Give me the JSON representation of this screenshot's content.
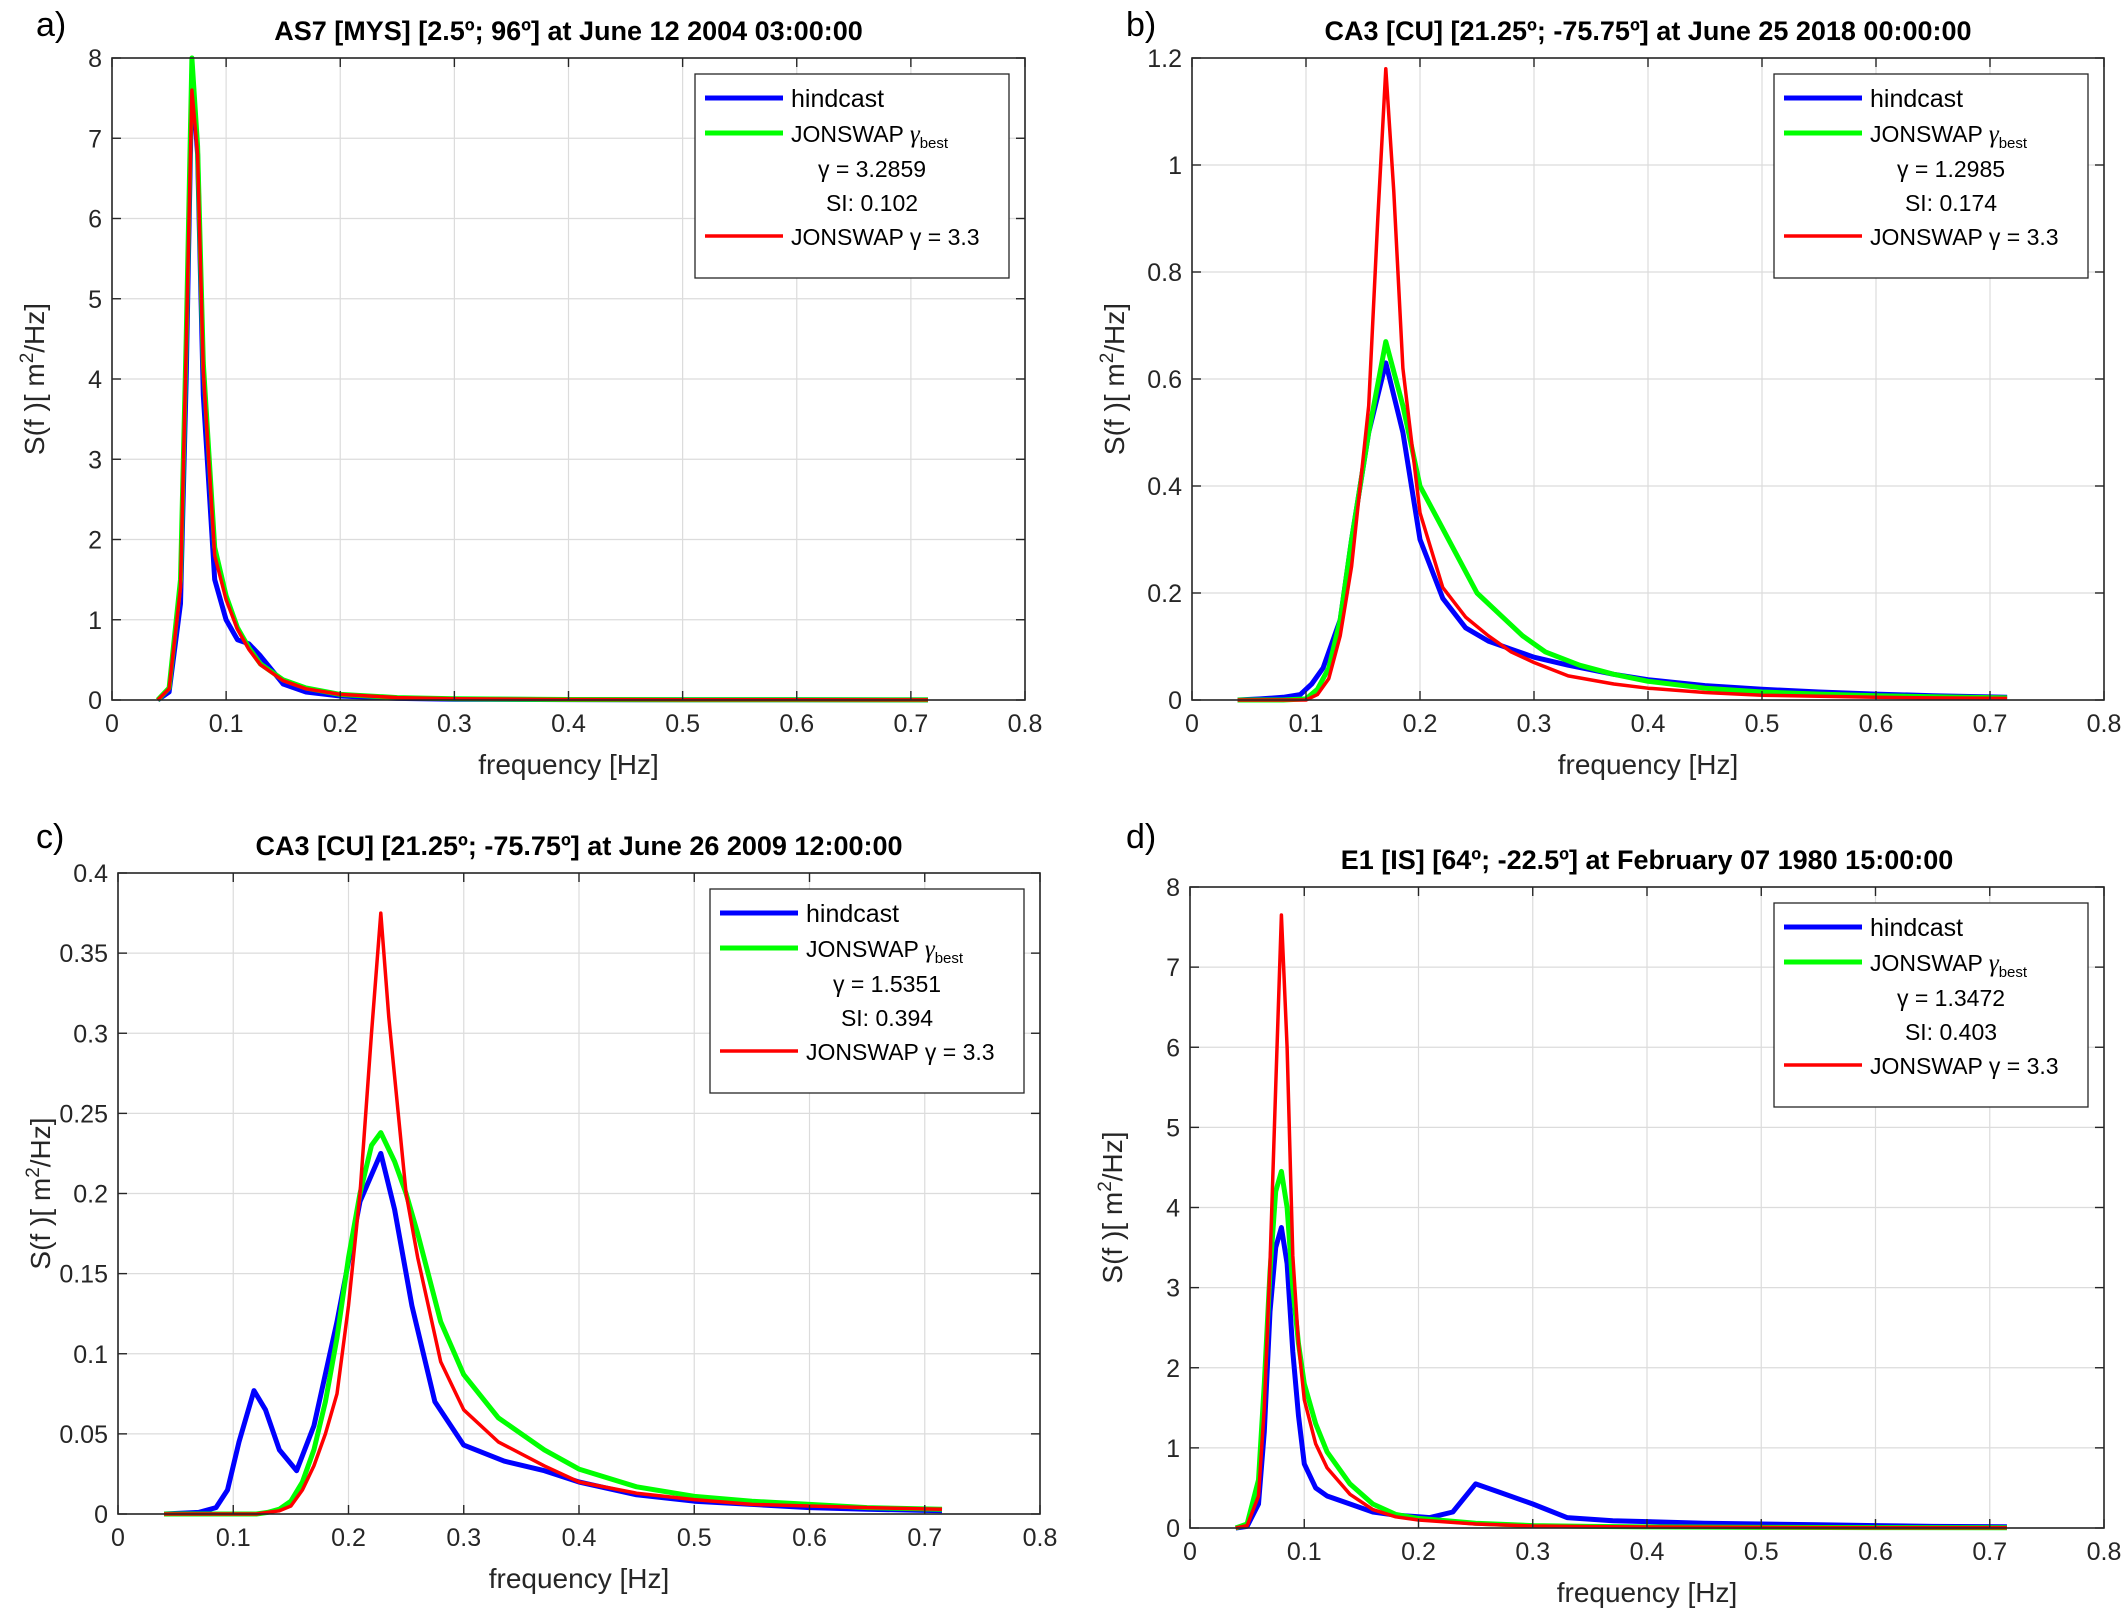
{
  "colors": {
    "hindcast": "#0000ff",
    "jonswap_best": "#00ff00",
    "jonswap_33": "#ff0000",
    "grid": "#dcdcdc",
    "axis": "#262626"
  },
  "chart_data": [
    {
      "panel": "a)",
      "type": "line",
      "title": "AS7 [MYS] [2.5º; 96º] at June 12 2004 03:00:00",
      "xlabel": "frequency [Hz]",
      "ylabel_pre": "S(f )[ m",
      "ylabel_sup": "2",
      "ylabel_post": "/Hz]",
      "xlim": [
        0,
        0.8
      ],
      "ylim": [
        0,
        8
      ],
      "xticks": [
        "0",
        "0.1",
        "0.2",
        "0.3",
        "0.4",
        "0.5",
        "0.6",
        "0.7",
        "0.8"
      ],
      "ytick_values": [
        0,
        1,
        2,
        3,
        4,
        5,
        6,
        7,
        8
      ],
      "yticks": [
        "0",
        "1",
        "2",
        "3",
        "4",
        "5",
        "6",
        "7",
        "8"
      ],
      "grid": true,
      "legend": {
        "position": "top-right",
        "gamma_label": "γ = 3.2859",
        "si_label": "SI: 0.102"
      },
      "series": [
        {
          "name": "hindcast",
          "x": [
            0.04,
            0.05,
            0.06,
            0.065,
            0.07,
            0.075,
            0.08,
            0.09,
            0.1,
            0.11,
            0.12,
            0.13,
            0.15,
            0.17,
            0.2,
            0.25,
            0.3,
            0.4,
            0.5,
            0.6,
            0.715
          ],
          "y": [
            0,
            0.1,
            1.2,
            4.0,
            7.8,
            6.8,
            3.8,
            1.5,
            1.0,
            0.75,
            0.7,
            0.55,
            0.2,
            0.1,
            0.05,
            0.02,
            0.01,
            0.005,
            0.003,
            0.002,
            0.001
          ]
        },
        {
          "name": "JONSWAP γ_best",
          "x": [
            0.04,
            0.05,
            0.06,
            0.065,
            0.07,
            0.075,
            0.08,
            0.09,
            0.1,
            0.11,
            0.12,
            0.13,
            0.15,
            0.17,
            0.2,
            0.25,
            0.3,
            0.4,
            0.5,
            0.6,
            0.715
          ],
          "y": [
            0,
            0.15,
            1.5,
            4.5,
            8.0,
            6.9,
            4.2,
            1.9,
            1.3,
            0.9,
            0.65,
            0.45,
            0.25,
            0.15,
            0.07,
            0.03,
            0.015,
            0.006,
            0.003,
            0.002,
            0.001
          ]
        },
        {
          "name": "JONSWAP γ = 3.3",
          "x": [
            0.04,
            0.05,
            0.06,
            0.065,
            0.07,
            0.075,
            0.08,
            0.09,
            0.1,
            0.11,
            0.12,
            0.13,
            0.15,
            0.17,
            0.2,
            0.25,
            0.3,
            0.4,
            0.5,
            0.6,
            0.715
          ],
          "y": [
            0,
            0.14,
            1.4,
            4.4,
            7.6,
            6.8,
            4.1,
            1.8,
            1.25,
            0.88,
            0.63,
            0.44,
            0.24,
            0.14,
            0.07,
            0.03,
            0.015,
            0.006,
            0.003,
            0.002,
            0.001
          ]
        }
      ]
    },
    {
      "panel": "b)",
      "type": "line",
      "title": "CA3 [CU] [21.25º; -75.75º] at June 25 2018 00:00:00",
      "xlabel": "frequency [Hz]",
      "ylabel_pre": "S(f )[ m",
      "ylabel_sup": "2",
      "ylabel_post": "/Hz]",
      "xlim": [
        0,
        0.8
      ],
      "ylim": [
        0,
        1.2
      ],
      "xticks": [
        "0",
        "0.1",
        "0.2",
        "0.3",
        "0.4",
        "0.5",
        "0.6",
        "0.7",
        "0.8"
      ],
      "ytick_values": [
        0,
        0.2,
        0.4,
        0.6,
        0.8,
        1,
        1.2
      ],
      "yticks": [
        "0",
        "0.2",
        "0.4",
        "0.6",
        "0.8",
        "1",
        "1.2"
      ],
      "grid": true,
      "legend": {
        "position": "top-right",
        "gamma_label": "γ = 1.2985",
        "si_label": "SI: 0.174"
      },
      "series": [
        {
          "name": "hindcast",
          "x": [
            0.04,
            0.06,
            0.08,
            0.095,
            0.105,
            0.115,
            0.13,
            0.14,
            0.155,
            0.17,
            0.185,
            0.2,
            0.22,
            0.24,
            0.26,
            0.28,
            0.3,
            0.33,
            0.37,
            0.4,
            0.45,
            0.5,
            0.55,
            0.6,
            0.65,
            0.715
          ],
          "y": [
            0,
            0.002,
            0.005,
            0.01,
            0.03,
            0.06,
            0.15,
            0.3,
            0.5,
            0.63,
            0.5,
            0.3,
            0.19,
            0.135,
            0.11,
            0.095,
            0.08,
            0.065,
            0.048,
            0.038,
            0.027,
            0.02,
            0.015,
            0.011,
            0.008,
            0.005
          ]
        },
        {
          "name": "JONSWAP γ_best",
          "x": [
            0.04,
            0.08,
            0.1,
            0.11,
            0.12,
            0.13,
            0.14,
            0.155,
            0.17,
            0.185,
            0.2,
            0.215,
            0.23,
            0.25,
            0.27,
            0.29,
            0.31,
            0.34,
            0.37,
            0.4,
            0.45,
            0.5,
            0.55,
            0.6,
            0.65,
            0.715
          ],
          "y": [
            0,
            0,
            0.002,
            0.02,
            0.06,
            0.15,
            0.3,
            0.5,
            0.67,
            0.55,
            0.4,
            0.34,
            0.28,
            0.2,
            0.16,
            0.12,
            0.09,
            0.065,
            0.048,
            0.035,
            0.022,
            0.015,
            0.011,
            0.008,
            0.006,
            0.004
          ]
        },
        {
          "name": "JONSWAP γ = 3.3",
          "x": [
            0.04,
            0.1,
            0.11,
            0.12,
            0.13,
            0.14,
            0.155,
            0.163,
            0.17,
            0.177,
            0.185,
            0.2,
            0.22,
            0.24,
            0.26,
            0.28,
            0.3,
            0.33,
            0.37,
            0.4,
            0.45,
            0.5,
            0.55,
            0.6,
            0.65,
            0.715
          ],
          "y": [
            0,
            0,
            0.01,
            0.04,
            0.12,
            0.25,
            0.55,
            0.9,
            1.18,
            0.95,
            0.62,
            0.35,
            0.21,
            0.155,
            0.12,
            0.09,
            0.07,
            0.045,
            0.03,
            0.022,
            0.014,
            0.009,
            0.007,
            0.005,
            0.004,
            0.003
          ]
        }
      ]
    },
    {
      "panel": "c)",
      "type": "line",
      "title": "CA3 [CU] [21.25º; -75.75º] at June 26 2009 12:00:00",
      "xlabel": "frequency [Hz]",
      "ylabel_pre": "S(f )[ m",
      "ylabel_sup": "2",
      "ylabel_post": "/Hz]",
      "xlim": [
        0,
        0.8
      ],
      "ylim": [
        0,
        0.4
      ],
      "xticks": [
        "0",
        "0.1",
        "0.2",
        "0.3",
        "0.4",
        "0.5",
        "0.6",
        "0.7",
        "0.8"
      ],
      "ytick_values": [
        0,
        0.05,
        0.1,
        0.15,
        0.2,
        0.25,
        0.3,
        0.35,
        0.4
      ],
      "yticks": [
        "0",
        "0.05",
        "0.1",
        "0.15",
        "0.2",
        "0.25",
        "0.3",
        "0.35",
        "0.4"
      ],
      "grid": true,
      "legend": {
        "position": "top-right",
        "gamma_label": "γ = 1.5351",
        "si_label": "SI: 0.394"
      },
      "series": [
        {
          "name": "hindcast",
          "x": [
            0.04,
            0.07,
            0.085,
            0.095,
            0.105,
            0.118,
            0.128,
            0.14,
            0.155,
            0.17,
            0.19,
            0.21,
            0.228,
            0.24,
            0.255,
            0.275,
            0.3,
            0.335,
            0.37,
            0.4,
            0.45,
            0.5,
            0.55,
            0.6,
            0.65,
            0.715
          ],
          "y": [
            0,
            0.001,
            0.004,
            0.015,
            0.045,
            0.077,
            0.065,
            0.04,
            0.027,
            0.055,
            0.12,
            0.195,
            0.225,
            0.19,
            0.13,
            0.07,
            0.043,
            0.033,
            0.027,
            0.02,
            0.012,
            0.008,
            0.006,
            0.004,
            0.003,
            0.002
          ]
        },
        {
          "name": "JONSWAP γ_best",
          "x": [
            0.04,
            0.12,
            0.13,
            0.14,
            0.15,
            0.16,
            0.17,
            0.18,
            0.19,
            0.2,
            0.21,
            0.22,
            0.228,
            0.24,
            0.25,
            0.26,
            0.28,
            0.3,
            0.33,
            0.37,
            0.4,
            0.45,
            0.5,
            0.55,
            0.6,
            0.65,
            0.715
          ],
          "y": [
            0,
            0,
            0.001,
            0.003,
            0.008,
            0.02,
            0.04,
            0.07,
            0.11,
            0.16,
            0.2,
            0.23,
            0.238,
            0.22,
            0.2,
            0.175,
            0.12,
            0.087,
            0.06,
            0.04,
            0.028,
            0.017,
            0.011,
            0.008,
            0.006,
            0.004,
            0.003
          ]
        },
        {
          "name": "JONSWAP γ = 3.3",
          "x": [
            0.04,
            0.12,
            0.13,
            0.14,
            0.15,
            0.16,
            0.17,
            0.18,
            0.19,
            0.2,
            0.21,
            0.22,
            0.228,
            0.235,
            0.25,
            0.26,
            0.28,
            0.3,
            0.33,
            0.37,
            0.4,
            0.45,
            0.5,
            0.55,
            0.6,
            0.65,
            0.715
          ],
          "y": [
            0,
            0,
            0.001,
            0.002,
            0.005,
            0.015,
            0.03,
            0.05,
            0.075,
            0.13,
            0.2,
            0.3,
            0.375,
            0.31,
            0.2,
            0.16,
            0.095,
            0.065,
            0.045,
            0.03,
            0.02,
            0.013,
            0.009,
            0.006,
            0.005,
            0.004,
            0.003
          ]
        }
      ]
    },
    {
      "panel": "d)",
      "type": "line",
      "title": "E1 [IS] [64º; -22.5º] at February 07 1980 15:00:00",
      "xlabel": "frequency [Hz]",
      "ylabel_pre": "S(f )[ m",
      "ylabel_sup": "2",
      "ylabel_post": "/Hz]",
      "xlim": [
        0,
        0.8
      ],
      "ylim": [
        0,
        8
      ],
      "xticks": [
        "0",
        "0.1",
        "0.2",
        "0.3",
        "0.4",
        "0.5",
        "0.6",
        "0.7",
        "0.8"
      ],
      "ytick_values": [
        0,
        1,
        2,
        3,
        4,
        5,
        6,
        7,
        8
      ],
      "yticks": [
        "0",
        "1",
        "2",
        "3",
        "4",
        "5",
        "6",
        "7",
        "8"
      ],
      "grid": true,
      "legend": {
        "position": "top-right",
        "gamma_label": "γ = 1.3472",
        "si_label": "SI: 0.403"
      },
      "series": [
        {
          "name": "hindcast",
          "x": [
            0.04,
            0.05,
            0.06,
            0.065,
            0.07,
            0.075,
            0.08,
            0.085,
            0.09,
            0.095,
            0.1,
            0.11,
            0.12,
            0.14,
            0.16,
            0.18,
            0.2,
            0.21,
            0.23,
            0.25,
            0.27,
            0.3,
            0.33,
            0.37,
            0.4,
            0.45,
            0.5,
            0.55,
            0.6,
            0.65,
            0.715
          ],
          "y": [
            0,
            0.02,
            0.3,
            1.2,
            2.7,
            3.5,
            3.75,
            3.3,
            2.2,
            1.4,
            0.8,
            0.5,
            0.4,
            0.3,
            0.2,
            0.16,
            0.14,
            0.13,
            0.2,
            0.55,
            0.45,
            0.3,
            0.13,
            0.09,
            0.08,
            0.06,
            0.05,
            0.04,
            0.03,
            0.02,
            0.015
          ]
        },
        {
          "name": "JONSWAP γ_best",
          "x": [
            0.04,
            0.05,
            0.06,
            0.065,
            0.07,
            0.075,
            0.08,
            0.085,
            0.09,
            0.095,
            0.1,
            0.11,
            0.12,
            0.14,
            0.16,
            0.18,
            0.2,
            0.25,
            0.3,
            0.35,
            0.4,
            0.5,
            0.6,
            0.715
          ],
          "y": [
            0,
            0.05,
            0.6,
            1.8,
            3.2,
            4.2,
            4.45,
            4.0,
            3.0,
            2.3,
            1.8,
            1.3,
            0.95,
            0.55,
            0.3,
            0.17,
            0.12,
            0.06,
            0.03,
            0.02,
            0.014,
            0.008,
            0.005,
            0.003
          ]
        },
        {
          "name": "JONSWAP γ = 3.3",
          "x": [
            0.04,
            0.05,
            0.06,
            0.065,
            0.07,
            0.075,
            0.08,
            0.085,
            0.09,
            0.095,
            0.1,
            0.11,
            0.12,
            0.14,
            0.16,
            0.18,
            0.2,
            0.25,
            0.3,
            0.35,
            0.4,
            0.5,
            0.6,
            0.715
          ],
          "y": [
            0,
            0.03,
            0.4,
            1.5,
            3.3,
            5.5,
            7.65,
            6.0,
            3.4,
            2.3,
            1.6,
            1.05,
            0.75,
            0.42,
            0.23,
            0.14,
            0.1,
            0.05,
            0.025,
            0.017,
            0.012,
            0.007,
            0.004,
            0.003
          ]
        }
      ]
    }
  ]
}
